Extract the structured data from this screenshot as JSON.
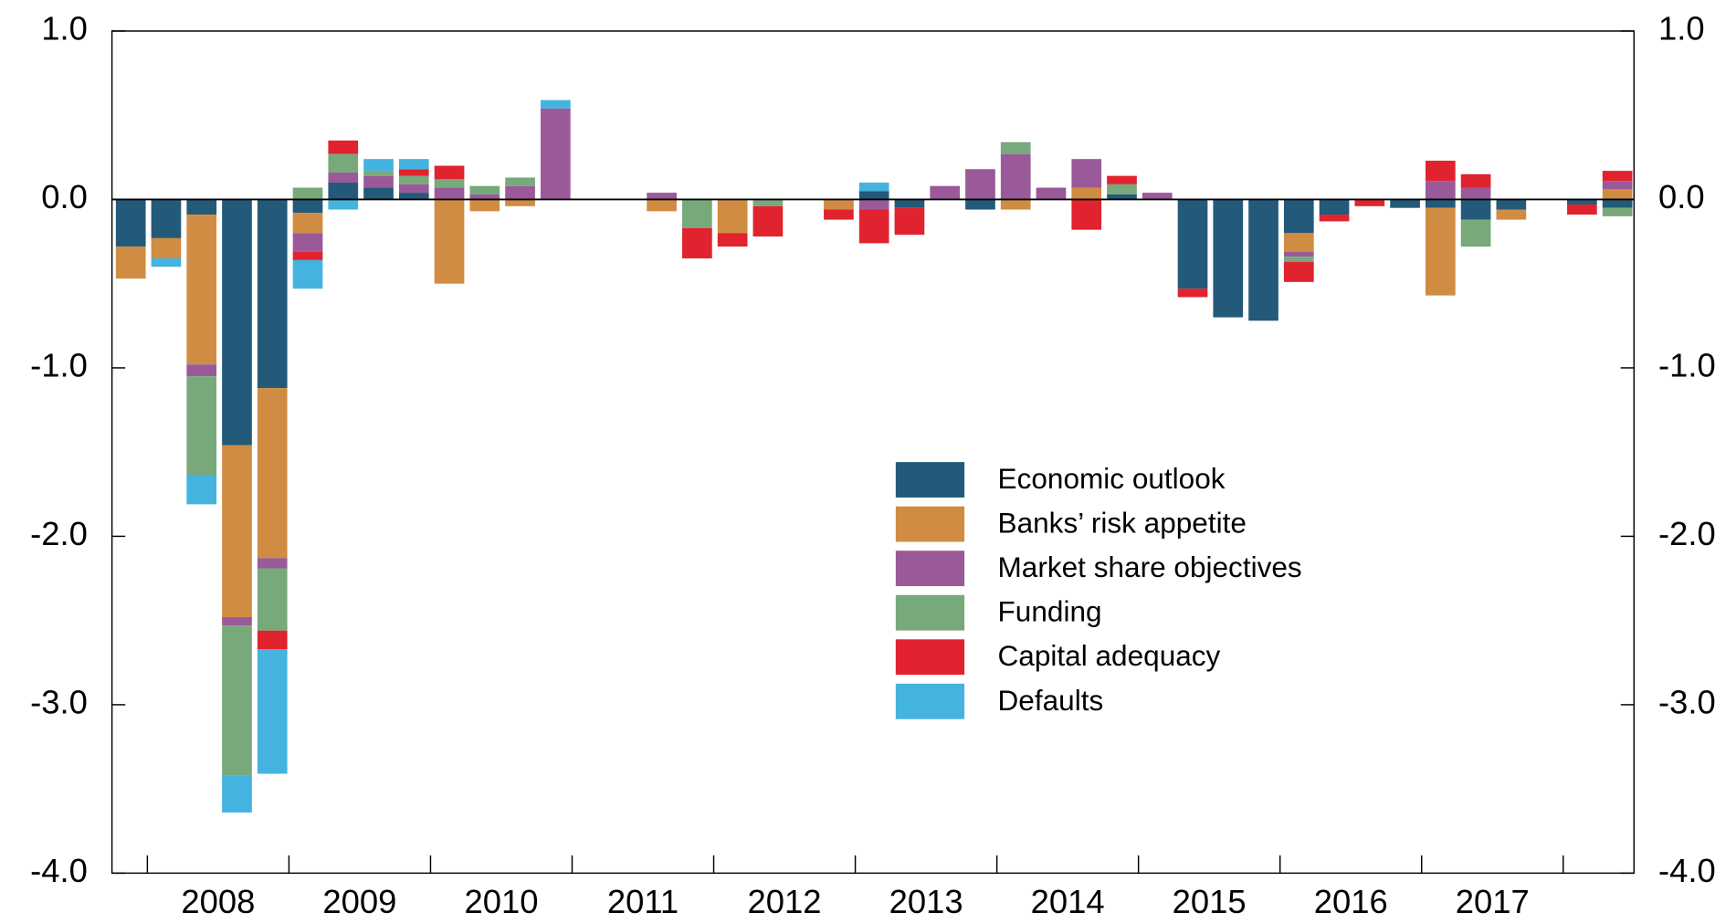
{
  "chart_data": {
    "type": "bar",
    "stacked": true,
    "categories": [
      null,
      null,
      null,
      null,
      null,
      null,
      null,
      null,
      null,
      null,
      null,
      null,
      null,
      null,
      null,
      null,
      null,
      null,
      null,
      null,
      null,
      null,
      null,
      null,
      null,
      null,
      null,
      null,
      null,
      null,
      null,
      null,
      null,
      null,
      null,
      null,
      null,
      null,
      null,
      null,
      null,
      null,
      null
    ],
    "x_groups": [
      "2008",
      "2009",
      "2010",
      "2011",
      "2012",
      "2013",
      "2014",
      "2015",
      "2016",
      "2017"
    ],
    "ylim": [
      -4,
      1
    ],
    "yticks": [
      {
        "value": 1,
        "label": "1.0"
      },
      {
        "value": 0,
        "label": "0.0"
      },
      {
        "value": -1,
        "label": "-1.0"
      },
      {
        "value": -2,
        "label": "-2.0"
      },
      {
        "value": -3,
        "label": "-3.0"
      },
      {
        "value": -4,
        "label": "-4.0"
      }
    ],
    "series": [
      {
        "name": "Economic outlook",
        "color": "#235a7a",
        "values": [
          -0.28,
          -0.23,
          -0.09,
          -1.46,
          -1.12,
          -0.08,
          0.1,
          0.07,
          0.04,
          0,
          0,
          0,
          0,
          0,
          0,
          0,
          0,
          0,
          0,
          0,
          0,
          0.05,
          -0.05,
          0,
          -0.06,
          0,
          0,
          0,
          0.03,
          0,
          -0.53,
          -0.7,
          -0.72,
          -0.2,
          -0.09,
          0,
          -0.05,
          -0.05,
          -0.12,
          -0.06,
          0,
          -0.03,
          -0.05
        ]
      },
      {
        "name": "Banks’ risk appetite",
        "color": "#d08c42",
        "values": [
          -0.19,
          -0.12,
          -0.89,
          -1.02,
          -1.01,
          -0.12,
          0,
          0,
          0,
          -0.5,
          -0.07,
          -0.04,
          0,
          0,
          0,
          -0.07,
          0,
          -0.2,
          0,
          0,
          -0.06,
          0,
          0,
          0,
          0,
          -0.06,
          0,
          0.07,
          0,
          0,
          0,
          0,
          0,
          -0.11,
          0,
          0,
          0,
          -0.52,
          0,
          -0.06,
          0,
          0,
          0.06
        ]
      },
      {
        "name": "Market share objectives",
        "color": "#9a5a9a",
        "values": [
          0,
          0,
          -0.07,
          -0.05,
          -0.06,
          -0.11,
          0.06,
          0.07,
          0.05,
          0.07,
          0.03,
          0.08,
          0.54,
          0,
          0,
          0.04,
          0,
          0,
          0,
          0,
          0,
          -0.06,
          0,
          0.08,
          0.18,
          0.27,
          0.07,
          0.17,
          0,
          0.04,
          0,
          0,
          0,
          -0.03,
          0,
          0,
          0,
          0.11,
          0.07,
          0,
          0,
          0,
          0.05
        ]
      },
      {
        "name": "Funding",
        "color": "#77a97b",
        "values": [
          0,
          0,
          -0.59,
          -0.89,
          -0.37,
          0.07,
          0.11,
          0.03,
          0.05,
          0.05,
          0.05,
          0.05,
          0,
          0,
          0,
          0,
          -0.17,
          0,
          -0.04,
          0,
          0,
          0,
          0,
          0,
          0,
          0.07,
          0,
          0,
          0.06,
          0,
          0,
          0,
          0,
          -0.03,
          0,
          0,
          0,
          0,
          -0.16,
          0,
          0,
          0,
          -0.05
        ]
      },
      {
        "name": "Capital adequacy",
        "color": "#e0232e",
        "values": [
          0,
          0,
          0,
          0,
          -0.11,
          -0.05,
          0.08,
          0,
          0.04,
          0.08,
          0,
          0,
          0,
          0,
          0,
          0,
          -0.18,
          -0.08,
          -0.18,
          0,
          -0.06,
          -0.2,
          -0.16,
          0,
          0,
          0,
          0,
          -0.18,
          0.05,
          0,
          -0.05,
          0,
          0,
          -0.12,
          -0.04,
          -0.04,
          0,
          0.12,
          0.08,
          0,
          0,
          -0.06,
          0.06
        ]
      },
      {
        "name": "Defaults",
        "color": "#45b3e0",
        "values": [
          0,
          -0.05,
          -0.17,
          -0.22,
          -0.74,
          -0.17,
          -0.06,
          0.07,
          0.06,
          0,
          0,
          0,
          0.05,
          0,
          0,
          0,
          0,
          0,
          0,
          0,
          0,
          0.05,
          0,
          0,
          0,
          0,
          0,
          0,
          0,
          0,
          0,
          0,
          0,
          0,
          0,
          0,
          0,
          0,
          0,
          0,
          0,
          0,
          0
        ]
      }
    ]
  }
}
